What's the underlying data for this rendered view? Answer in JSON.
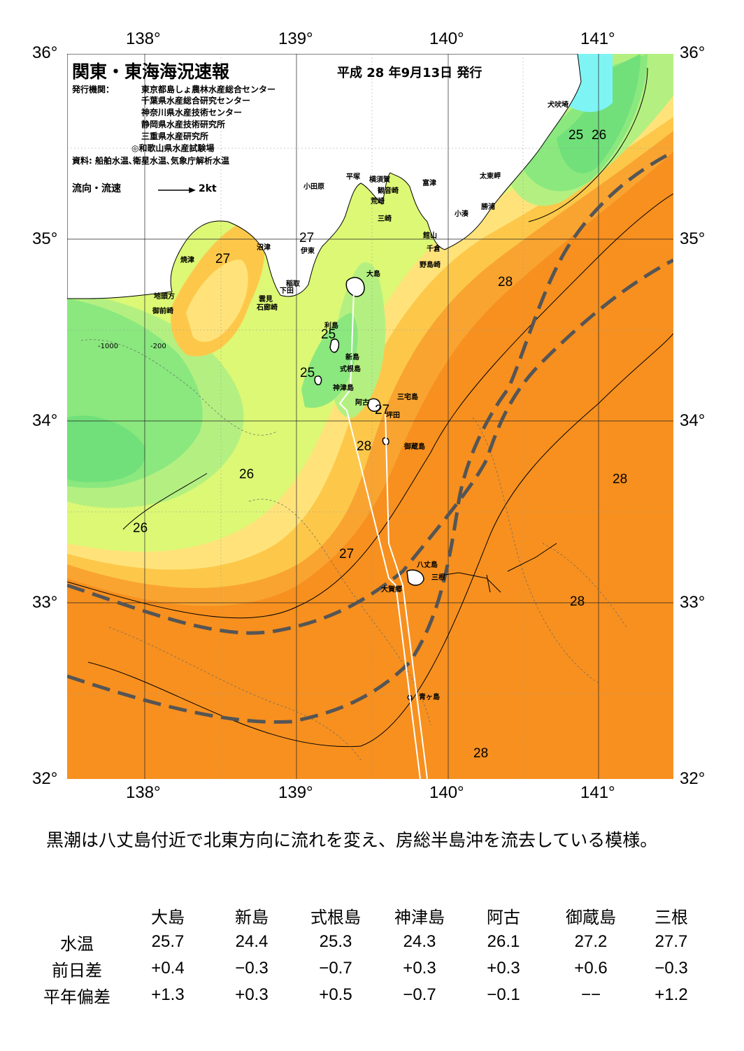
{
  "header": {
    "title": "関東・東海海況速報",
    "date": "平成 28 年9月13日 発行",
    "issuer_label": "発行機関：",
    "issuers": [
      "東京都島しょ農林水産総合センター",
      "千葉県水産総合研究センター",
      "神奈川県水産技術センター",
      "静岡県水産技術研究所",
      "三重県水産研究所",
      "◎和歌山県水産試験場"
    ],
    "source": "資料: 船舶水温､衛星水温､気象庁解析水温",
    "legend_label": "流向・流速",
    "legend_speed": "2kt"
  },
  "axes": {
    "lon_labels": [
      "138°",
      "139°",
      "140°",
      "141°"
    ],
    "lat_labels": [
      "36°",
      "35°",
      "34°",
      "33°",
      "32°"
    ],
    "lon_range": [
      137.5,
      141.5
    ],
    "lat_range": [
      32,
      36
    ]
  },
  "colors": {
    "cyan": "#7ff4f4",
    "green_dark": "#71e07a",
    "green": "#8ae87e",
    "green_light": "#b4f081",
    "yellow_green": "#dcf875",
    "pale_yellow": "#ffe37a",
    "light_orange": "#fdc84a",
    "orange": "#f9a431",
    "dark_orange": "#f7901f",
    "kuroshio_line": "#555555"
  },
  "places": {
    "inubosaki": "犬吠埼",
    "taitomisaki": "太東岬",
    "katsuura": "勝浦",
    "kominato": "小湊",
    "odawara": "小田原",
    "hiratsuka": "平塚",
    "yokosuka": "横須賀",
    "kannonzaki": "観音崎",
    "futtsu": "富津",
    "arasaki": "荒崎",
    "misaki": "三崎",
    "tateyama": "館山",
    "chikura": "千倉",
    "nojimazaki": "野島崎",
    "yaizu": "焼津",
    "numazu": "沼津",
    "ito": "伊東",
    "inatori": "稲取",
    "shimoda": "下田",
    "kumomi": "雲見",
    "irouzaki": "石廊崎",
    "jitokata": "地頭方",
    "omaezaki": "御前崎",
    "oshima": "大島",
    "toshima": "利島",
    "niijima": "新島",
    "shikinejima": "式根島",
    "kozushima": "神津島",
    "miyakejima": "三宅島",
    "ako": "阿古",
    "tsubota": "坪田",
    "mikurajima": "御蔵島",
    "hachijojima": "八丈島",
    "okago": "大賀郷",
    "mine": "三根",
    "aogashima": "青ヶ島"
  },
  "isotherm_labels": {
    "l25a": "25",
    "l26a": "26",
    "l28a": "28",
    "l27a": "27",
    "l27b": "27",
    "l25b": "25",
    "l25c": "25",
    "l27c": "27",
    "l28b": "28",
    "l26b": "26",
    "l28c": "28",
    "l26c": "26",
    "l27d": "27",
    "l28d": "28",
    "l28e": "28"
  },
  "depth_labels": {
    "d200": "-200",
    "d1000": "-1000"
  },
  "description": "黒潮は八丈島付近で北東方向に流れを変え、房総半島沖を流去している模様。",
  "table": {
    "stations": [
      "大島",
      "新島",
      "式根島",
      "神津島",
      "阿古",
      "御蔵島",
      "三根"
    ],
    "rows": [
      {
        "label": "水温",
        "values": [
          "25.7",
          "24.4",
          "25.3",
          "24.3",
          "26.1",
          "27.2",
          "27.7"
        ]
      },
      {
        "label": "前日差",
        "values": [
          "+0.4",
          "−0.3",
          "−0.7",
          "+0.3",
          "+0.3",
          "+0.6",
          "−0.3"
        ]
      },
      {
        "label": "平年偏差",
        "values": [
          "+1.3",
          "+0.3",
          "+0.5",
          "−0.7",
          "−0.1",
          "−−",
          "+1.2"
        ]
      }
    ]
  }
}
